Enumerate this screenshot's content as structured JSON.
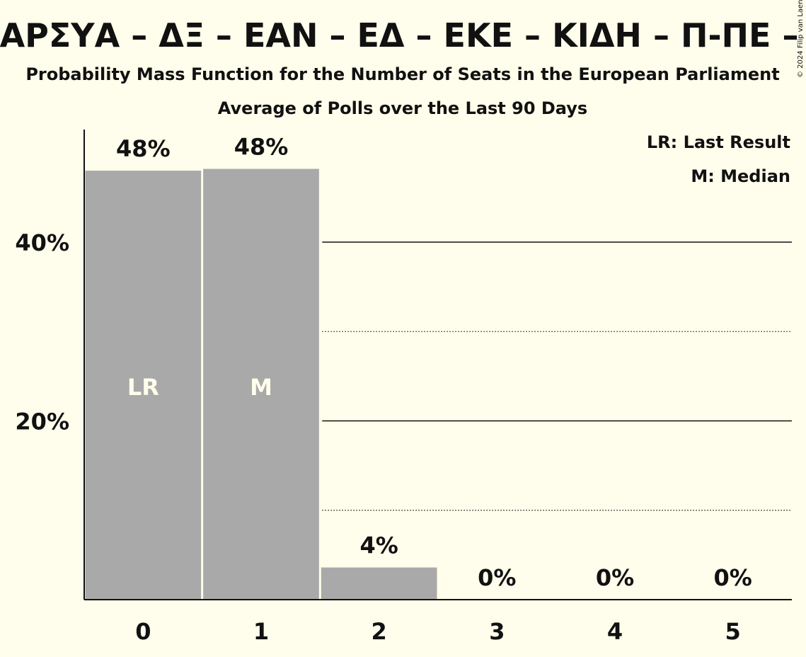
{
  "chart_data": {
    "type": "bar",
    "title": "ΑΝΤΑΡΣΥΑ – ΔΞ – ΕΑΝ – ΕΔ – ΕΚΕ – ΚΙΔΗ – Π-ΠΕ – Σπα",
    "subtitle": "Probability Mass Function for the Number of Seats in the European Parliament",
    "subtitle2": "Average of Polls over the Last 90 Days",
    "copyright": "© 2024 Filip van Laenen",
    "categories": [
      "0",
      "1",
      "2",
      "3",
      "4",
      "5"
    ],
    "values": [
      48,
      48.2,
      3.6,
      0,
      0,
      0
    ],
    "value_labels": [
      "48%",
      "48%",
      "4%",
      "0%",
      "0%",
      "0%"
    ],
    "bar_annotations": [
      "LR",
      "M",
      "",
      "",
      "",
      ""
    ],
    "ytick_values": [
      20,
      40
    ],
    "ytick_labels": [
      "20%",
      "40%"
    ],
    "dotted_gridlines": [
      10,
      30
    ],
    "ylim": [
      0,
      52.6
    ],
    "legend": [
      "LR: Last Result",
      "M: Median"
    ],
    "legend_position": "top-right",
    "colors": {
      "bar": "#a9a9a9",
      "background": "#fffdeb",
      "annotation_text": "#fffdeb"
    }
  }
}
